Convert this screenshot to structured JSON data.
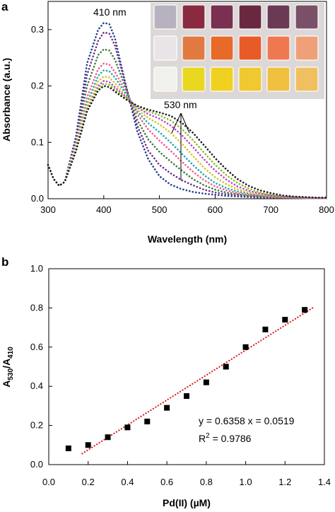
{
  "panel_a": {
    "letter": "a",
    "peak_label_1": "410 nm",
    "peak_label_2": "530 nm",
    "xlabel": "Wavelength (nm)",
    "ylabel": "Absorbance (a.u.)",
    "xticks": [
      "300",
      "400",
      "500",
      "600",
      "700",
      "800"
    ],
    "yticks": [
      "0.0",
      "0.1",
      "0.2",
      "0.3"
    ],
    "inset_photo": {
      "rows": [
        [
          "#b8b2c0",
          "#8a2a40",
          "#7a3050",
          "#6a2840",
          "#6a3a55",
          "#7a5068"
        ],
        [
          "#e8e4e8",
          "#e07a40",
          "#e86a2a",
          "#e85a28",
          "#f07850",
          "#f0a078"
        ],
        [
          "#f0f0ec",
          "#e8d820",
          "#f0d020",
          "#f0c830",
          "#f0c040",
          "#f0c060"
        ]
      ]
    }
  },
  "panel_b": {
    "letter": "b",
    "xlabel": "Pd(II) (µM)",
    "ylabel_main": "A",
    "ylabel_sub1": "530",
    "ylabel_sep": "/A",
    "ylabel_sub2": "410",
    "xticks": [
      "0.0",
      "0.2",
      "0.4",
      "0.6",
      "0.8",
      "1.0",
      "1.2",
      "1.4"
    ],
    "yticks": [
      "0.0",
      "0.2",
      "0.4",
      "0.6",
      "0.8",
      "1.0"
    ],
    "equation": "y = 0.6358 x = 0.0519",
    "r2_prefix": "R",
    "r2_sup": "2",
    "r2_value": " = 0.9786"
  },
  "chart_data": [
    {
      "type": "line",
      "title": "",
      "xlabel": "Wavelength (nm)",
      "ylabel": "Absorbance (a.u.)",
      "xlim": [
        300,
        800
      ],
      "ylim": [
        0,
        0.35
      ],
      "grid": false,
      "line_style": "dotted",
      "x": [
        300,
        310,
        320,
        330,
        350,
        370,
        390,
        400,
        410,
        420,
        440,
        460,
        480,
        500,
        520,
        540,
        560,
        580,
        600,
        620,
        640,
        660,
        680,
        700,
        720,
        740,
        760,
        780,
        800
      ],
      "series": [
        {
          "color": "#1f3d8a",
          "values": [
            0.06,
            0.035,
            0.023,
            0.03,
            0.11,
            0.24,
            0.3,
            0.312,
            0.31,
            0.285,
            0.2,
            0.12,
            0.07,
            0.04,
            0.025,
            0.017,
            0.012,
            0.009,
            0.007,
            0.005,
            0.004,
            0.003,
            0.002,
            0.002,
            0.001,
            0.001,
            0.001,
            0.001,
            0.001
          ]
        },
        {
          "color": "#6a2c8a",
          "values": [
            0.06,
            0.035,
            0.023,
            0.03,
            0.105,
            0.22,
            0.28,
            0.295,
            0.293,
            0.272,
            0.2,
            0.13,
            0.085,
            0.06,
            0.045,
            0.033,
            0.024,
            0.016,
            0.011,
            0.008,
            0.006,
            0.004,
            0.003,
            0.002,
            0.002,
            0.001,
            0.001,
            0.001,
            0.001
          ]
        },
        {
          "color": "#3a7a3a",
          "values": [
            0.06,
            0.035,
            0.023,
            0.03,
            0.1,
            0.2,
            0.255,
            0.265,
            0.263,
            0.247,
            0.195,
            0.14,
            0.105,
            0.083,
            0.066,
            0.05,
            0.035,
            0.024,
            0.016,
            0.011,
            0.008,
            0.005,
            0.004,
            0.003,
            0.002,
            0.002,
            0.001,
            0.001,
            0.001
          ]
        },
        {
          "color": "#f05a8c",
          "values": [
            0.06,
            0.035,
            0.023,
            0.03,
            0.095,
            0.18,
            0.23,
            0.24,
            0.238,
            0.225,
            0.19,
            0.15,
            0.123,
            0.103,
            0.085,
            0.066,
            0.048,
            0.033,
            0.022,
            0.015,
            0.01,
            0.007,
            0.005,
            0.003,
            0.002,
            0.002,
            0.001,
            0.001,
            0.001
          ]
        },
        {
          "color": "#1fa8b0",
          "values": [
            0.06,
            0.035,
            0.023,
            0.03,
            0.09,
            0.17,
            0.218,
            0.228,
            0.226,
            0.215,
            0.186,
            0.155,
            0.134,
            0.118,
            0.1,
            0.08,
            0.06,
            0.042,
            0.028,
            0.019,
            0.013,
            0.009,
            0.006,
            0.004,
            0.003,
            0.002,
            0.001,
            0.001,
            0.001
          ]
        },
        {
          "color": "#d4c21a",
          "values": [
            0.06,
            0.035,
            0.023,
            0.03,
            0.088,
            0.165,
            0.208,
            0.217,
            0.215,
            0.205,
            0.182,
            0.158,
            0.143,
            0.132,
            0.117,
            0.098,
            0.076,
            0.055,
            0.038,
            0.026,
            0.017,
            0.011,
            0.007,
            0.005,
            0.003,
            0.002,
            0.002,
            0.001,
            0.001
          ]
        },
        {
          "color": "#c040d0",
          "values": [
            0.06,
            0.035,
            0.023,
            0.03,
            0.086,
            0.16,
            0.2,
            0.209,
            0.207,
            0.198,
            0.18,
            0.162,
            0.15,
            0.142,
            0.13,
            0.113,
            0.092,
            0.07,
            0.05,
            0.034,
            0.022,
            0.014,
            0.009,
            0.006,
            0.004,
            0.003,
            0.002,
            0.001,
            0.001
          ]
        },
        {
          "color": "#7ac020",
          "values": [
            0.06,
            0.035,
            0.023,
            0.03,
            0.085,
            0.158,
            0.196,
            0.204,
            0.202,
            0.194,
            0.178,
            0.164,
            0.155,
            0.148,
            0.139,
            0.124,
            0.104,
            0.082,
            0.06,
            0.042,
            0.028,
            0.018,
            0.011,
            0.007,
            0.005,
            0.003,
            0.002,
            0.002,
            0.001
          ]
        },
        {
          "color": "#1a1a1a",
          "values": [
            0.06,
            0.035,
            0.023,
            0.03,
            0.084,
            0.155,
            0.192,
            0.2,
            0.198,
            0.19,
            0.176,
            0.165,
            0.158,
            0.153,
            0.147,
            0.135,
            0.117,
            0.095,
            0.072,
            0.052,
            0.035,
            0.023,
            0.015,
            0.01,
            0.006,
            0.004,
            0.003,
            0.002,
            0.002
          ]
        }
      ]
    },
    {
      "type": "scatter",
      "title": "",
      "xlabel": "Pd(II) (µM)",
      "ylabel": "A530/A410",
      "xlim": [
        0,
        1.4
      ],
      "ylim": [
        0,
        1.0
      ],
      "grid": false,
      "series": [
        {
          "marker": "square",
          "color": "#000000",
          "x": [
            0.1,
            0.2,
            0.3,
            0.4,
            0.5,
            0.6,
            0.7,
            0.8,
            0.9,
            1.0,
            1.1,
            1.2,
            1.3
          ],
          "y": [
            0.083,
            0.1,
            0.14,
            0.19,
            0.22,
            0.29,
            0.35,
            0.42,
            0.5,
            0.6,
            0.69,
            0.74,
            0.79
          ]
        }
      ],
      "fit": {
        "slope": 0.6358,
        "intercept": -0.0519,
        "x_range": [
          0.17,
          1.35
        ],
        "color": "#d42020",
        "style": "dotted"
      }
    }
  ]
}
